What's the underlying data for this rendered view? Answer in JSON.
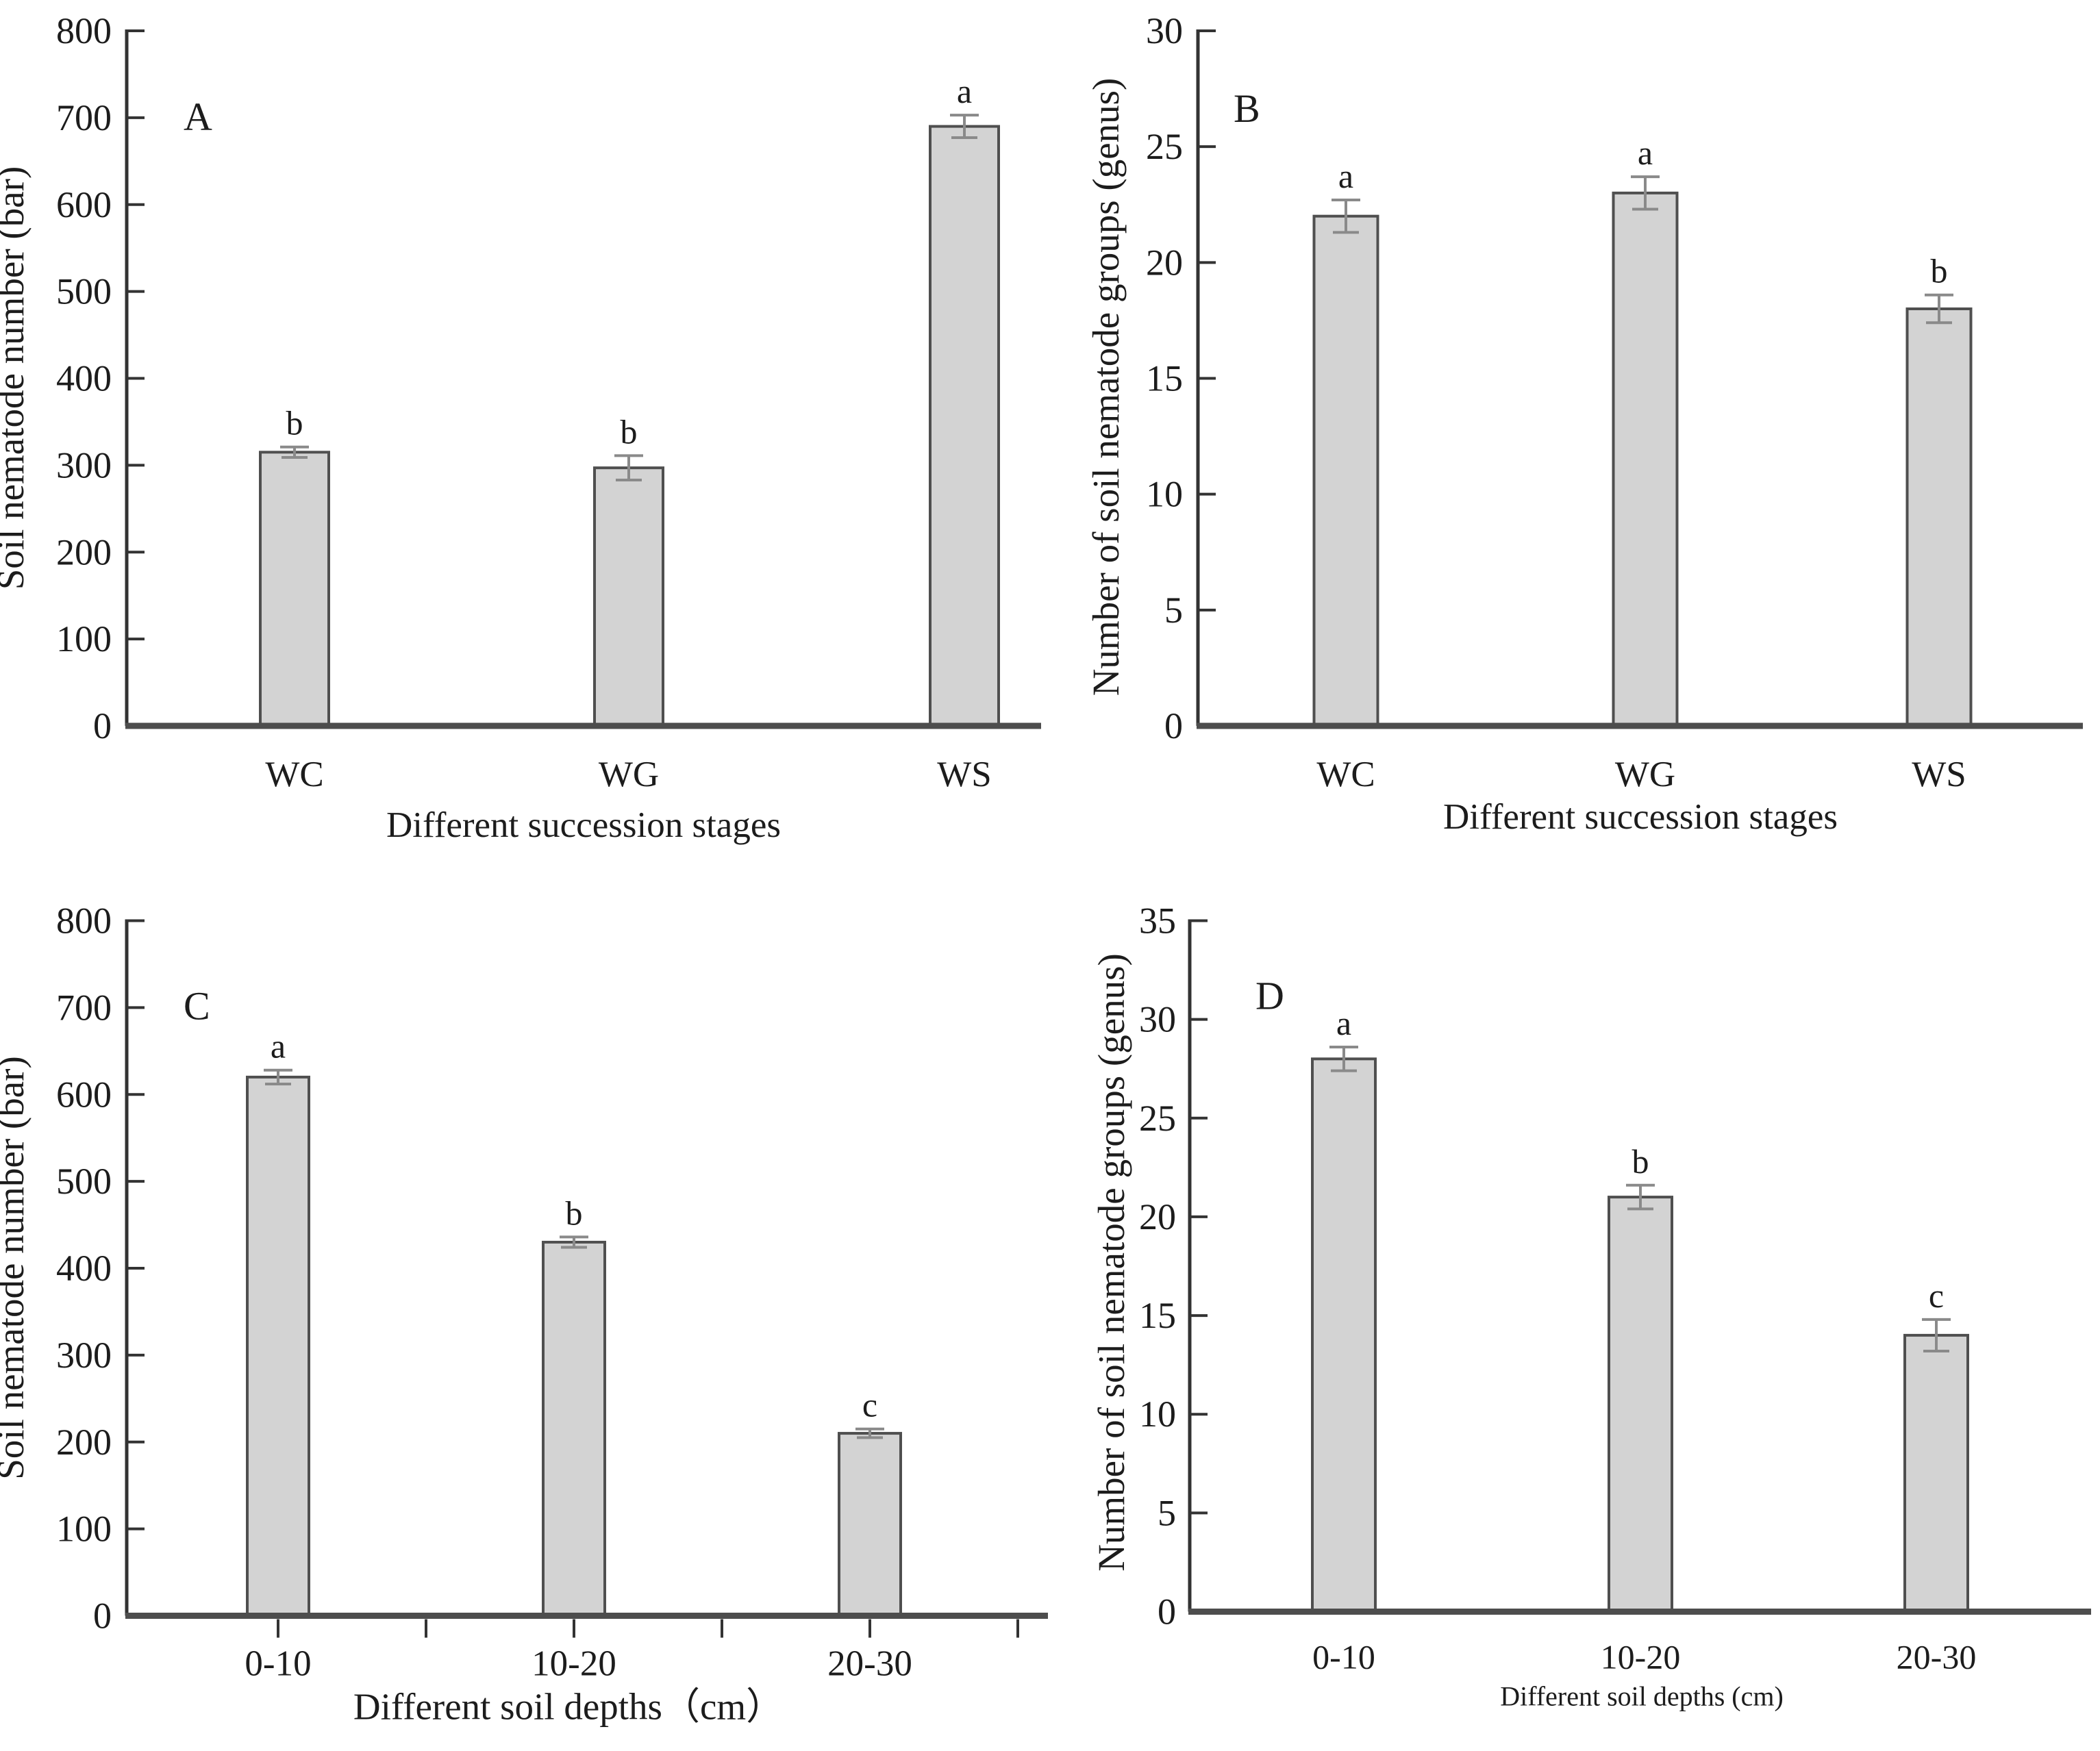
{
  "figure": {
    "background": "#ffffff",
    "panel_letters": [
      "A",
      "B",
      "C",
      "D"
    ]
  },
  "style": {
    "bar_fill": "#d3d3d3",
    "bar_stroke": "#4f4f4f",
    "error_bar_color": "#8a8a8a",
    "axis_color": "#333333",
    "baseline_color": "#4d4d4d",
    "text_color": "#1c1c1c"
  },
  "chart_data": [
    {
      "panel": "A",
      "type": "bar",
      "title": "",
      "categories": [
        "WC",
        "WG",
        "WS"
      ],
      "values": [
        315,
        297,
        690
      ],
      "errors": [
        6,
        14,
        13
      ],
      "sig_letters": [
        "b",
        "b",
        "a"
      ],
      "xlabel": "Different succession stages",
      "ylabel": "Soil nematode number (bar)",
      "ylim": [
        0,
        800
      ],
      "ytick_step": 100,
      "ytick_labels": [
        "0",
        "100",
        "200",
        "300",
        "400",
        "500",
        "600",
        "700",
        "800"
      ],
      "grid": false,
      "legend": "none",
      "x_axis_has_ticks": false
    },
    {
      "panel": "B",
      "type": "bar",
      "title": "",
      "categories": [
        "WC",
        "WG",
        "WS"
      ],
      "values": [
        22,
        23,
        18
      ],
      "errors": [
        0.7,
        0.7,
        0.6
      ],
      "sig_letters": [
        "a",
        "a",
        "b"
      ],
      "xlabel": "Different succession stages",
      "ylabel": "Number of soil nematode groups (genus)",
      "ylim": [
        0,
        30
      ],
      "ytick_step": 5,
      "ytick_labels": [
        "0",
        "5",
        "10",
        "15",
        "20",
        "25",
        "30"
      ],
      "grid": false,
      "legend": "none",
      "x_axis_has_ticks": false
    },
    {
      "panel": "C",
      "type": "bar",
      "title": "",
      "categories": [
        "0-10",
        "10-20",
        "20-30"
      ],
      "values": [
        620,
        430,
        210
      ],
      "errors": [
        8,
        6,
        5
      ],
      "sig_letters": [
        "a",
        "b",
        "c"
      ],
      "xlabel": "Different soil depths（cm）",
      "ylabel": "Soil nematode number (bar)",
      "ylim": [
        0,
        800
      ],
      "ytick_step": 100,
      "ytick_labels": [
        "0",
        "100",
        "200",
        "300",
        "400",
        "500",
        "600",
        "700",
        "800"
      ],
      "grid": false,
      "legend": "none",
      "x_axis_has_ticks": true
    },
    {
      "panel": "D",
      "type": "bar",
      "title": "",
      "categories": [
        "0-10",
        "10-20",
        "20-30"
      ],
      "values": [
        28,
        21,
        14
      ],
      "errors": [
        0.6,
        0.6,
        0.8
      ],
      "sig_letters": [
        "a",
        "b",
        "c"
      ],
      "xlabel": "Different soil depths (cm)",
      "ylabel": "Number of soil nematode groups (genus)",
      "ylim": [
        0,
        35
      ],
      "ytick_step": 5,
      "ytick_labels": [
        "0",
        "5",
        "10",
        "15",
        "20",
        "25",
        "30",
        "35"
      ],
      "grid": false,
      "legend": "none",
      "x_axis_has_ticks": false
    }
  ]
}
